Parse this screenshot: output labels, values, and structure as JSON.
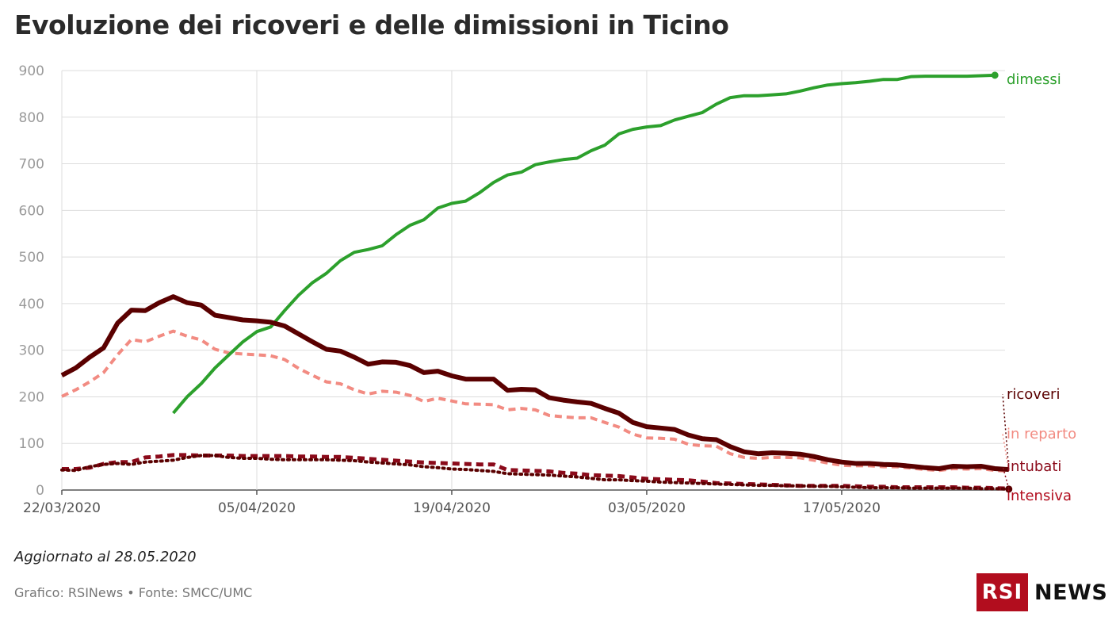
{
  "header": {
    "title": "Evoluzione dei ricoveri e delle dimissioni in Ticino"
  },
  "footer": {
    "updated": "Aggiornato al 28.05.2020",
    "source": "Grafico: RSINews • Fonte: SMCC/UMC",
    "logo_box": "RSI",
    "logo_text": "NEWS"
  },
  "chart_data": {
    "type": "line",
    "title": "Evoluzione dei ricoveri e delle dimissioni in Ticino",
    "xlabel": "",
    "ylabel": "",
    "ylim": [
      0,
      900
    ],
    "yticks": [
      0,
      100,
      200,
      300,
      400,
      500,
      600,
      700,
      800,
      900
    ],
    "xticks": [
      "22/03/2020",
      "05/04/2020",
      "19/04/2020",
      "03/05/2020",
      "17/05/2020"
    ],
    "x_start": "22/03/2020",
    "x_end": "28/05/2020",
    "grid": true,
    "legend": "direct labels at right end",
    "series": [
      {
        "name": "dimessi",
        "color": "#2ca02c",
        "style": "solid",
        "width": 4,
        "start": "30/03/2020",
        "values": [
          165,
          200,
          228,
          262,
          290,
          318,
          340,
          350,
          385,
          418,
          445,
          465,
          492,
          510,
          516,
          524,
          548,
          568,
          580,
          605,
          615,
          620,
          638,
          660,
          676,
          682,
          698,
          704,
          709,
          712,
          728,
          740,
          764,
          774,
          779,
          782,
          794,
          802,
          810,
          828,
          842,
          846,
          846,
          848,
          850,
          856,
          863,
          869,
          872,
          874,
          877,
          881,
          881,
          887,
          888,
          888,
          888,
          888,
          889,
          890
        ]
      },
      {
        "name": "ricoveri",
        "color": "#5a0000",
        "style": "solid",
        "width": 6,
        "start": "22/03/2020",
        "values": [
          246,
          262,
          285,
          305,
          358,
          386,
          385,
          402,
          415,
          402,
          397,
          375,
          370,
          365,
          363,
          360,
          352,
          335,
          318,
          302,
          298,
          285,
          270,
          275,
          274,
          267,
          252,
          255,
          245,
          238,
          238,
          238,
          214,
          216,
          215,
          198,
          193,
          189,
          186,
          175,
          165,
          145,
          136,
          133,
          130,
          118,
          110,
          108,
          93,
          82,
          78,
          80,
          79,
          77,
          72,
          65,
          60,
          57,
          57,
          55,
          54,
          51,
          48,
          46,
          51,
          50,
          51,
          46,
          44
        ]
      },
      {
        "name": "in reparto",
        "color": "#f28b82",
        "style": "dash",
        "width": 4,
        "start": "22/03/2020",
        "values": [
          201,
          215,
          232,
          252,
          290,
          323,
          318,
          330,
          341,
          330,
          322,
          302,
          294,
          292,
          290,
          288,
          280,
          261,
          246,
          232,
          228,
          215,
          206,
          212,
          210,
          203,
          190,
          197,
          191,
          185,
          184,
          183,
          172,
          175,
          172,
          160,
          157,
          155,
          155,
          145,
          135,
          120,
          112,
          111,
          109,
          98,
          95,
          94,
          78,
          70,
          68,
          70,
          70,
          69,
          64,
          58,
          53,
          52,
          52,
          50,
          50,
          47,
          44,
          42,
          46,
          45,
          46,
          42,
          41
        ]
      },
      {
        "name": "intubati",
        "color": "#8b0a1a",
        "style": "dash",
        "width": 5,
        "start": "22/03/2020",
        "values": [
          45,
          45,
          48,
          56,
          60,
          60,
          70,
          72,
          75,
          75,
          74,
          74,
          74,
          73,
          73,
          73,
          73,
          72,
          72,
          71,
          71,
          69,
          67,
          65,
          63,
          61,
          59,
          58,
          57,
          56,
          55,
          55,
          43,
          42,
          41,
          40,
          37,
          35,
          32,
          31,
          30,
          27,
          24,
          23,
          22,
          21,
          18,
          15,
          14,
          13,
          12,
          11,
          10,
          9,
          9,
          9,
          9,
          8,
          7,
          7,
          6,
          6,
          6,
          6,
          6,
          5,
          5,
          4,
          3
        ]
      },
      {
        "name": "intensiva",
        "color": "#5a0000",
        "style": "dot",
        "width": 4,
        "start": "22/03/2020",
        "values": [
          43,
          42,
          50,
          55,
          57,
          55,
          60,
          62,
          64,
          70,
          74,
          74,
          70,
          68,
          68,
          66,
          65,
          65,
          65,
          65,
          64,
          63,
          60,
          58,
          56,
          54,
          50,
          48,
          45,
          44,
          42,
          40,
          35,
          34,
          33,
          32,
          30,
          28,
          25,
          22,
          22,
          20,
          19,
          17,
          16,
          15,
          14,
          13,
          12,
          11,
          10,
          10,
          9,
          9,
          8,
          8,
          7,
          6,
          5,
          5,
          5,
          4,
          4,
          4,
          4,
          4,
          3,
          3,
          2
        ]
      }
    ]
  }
}
